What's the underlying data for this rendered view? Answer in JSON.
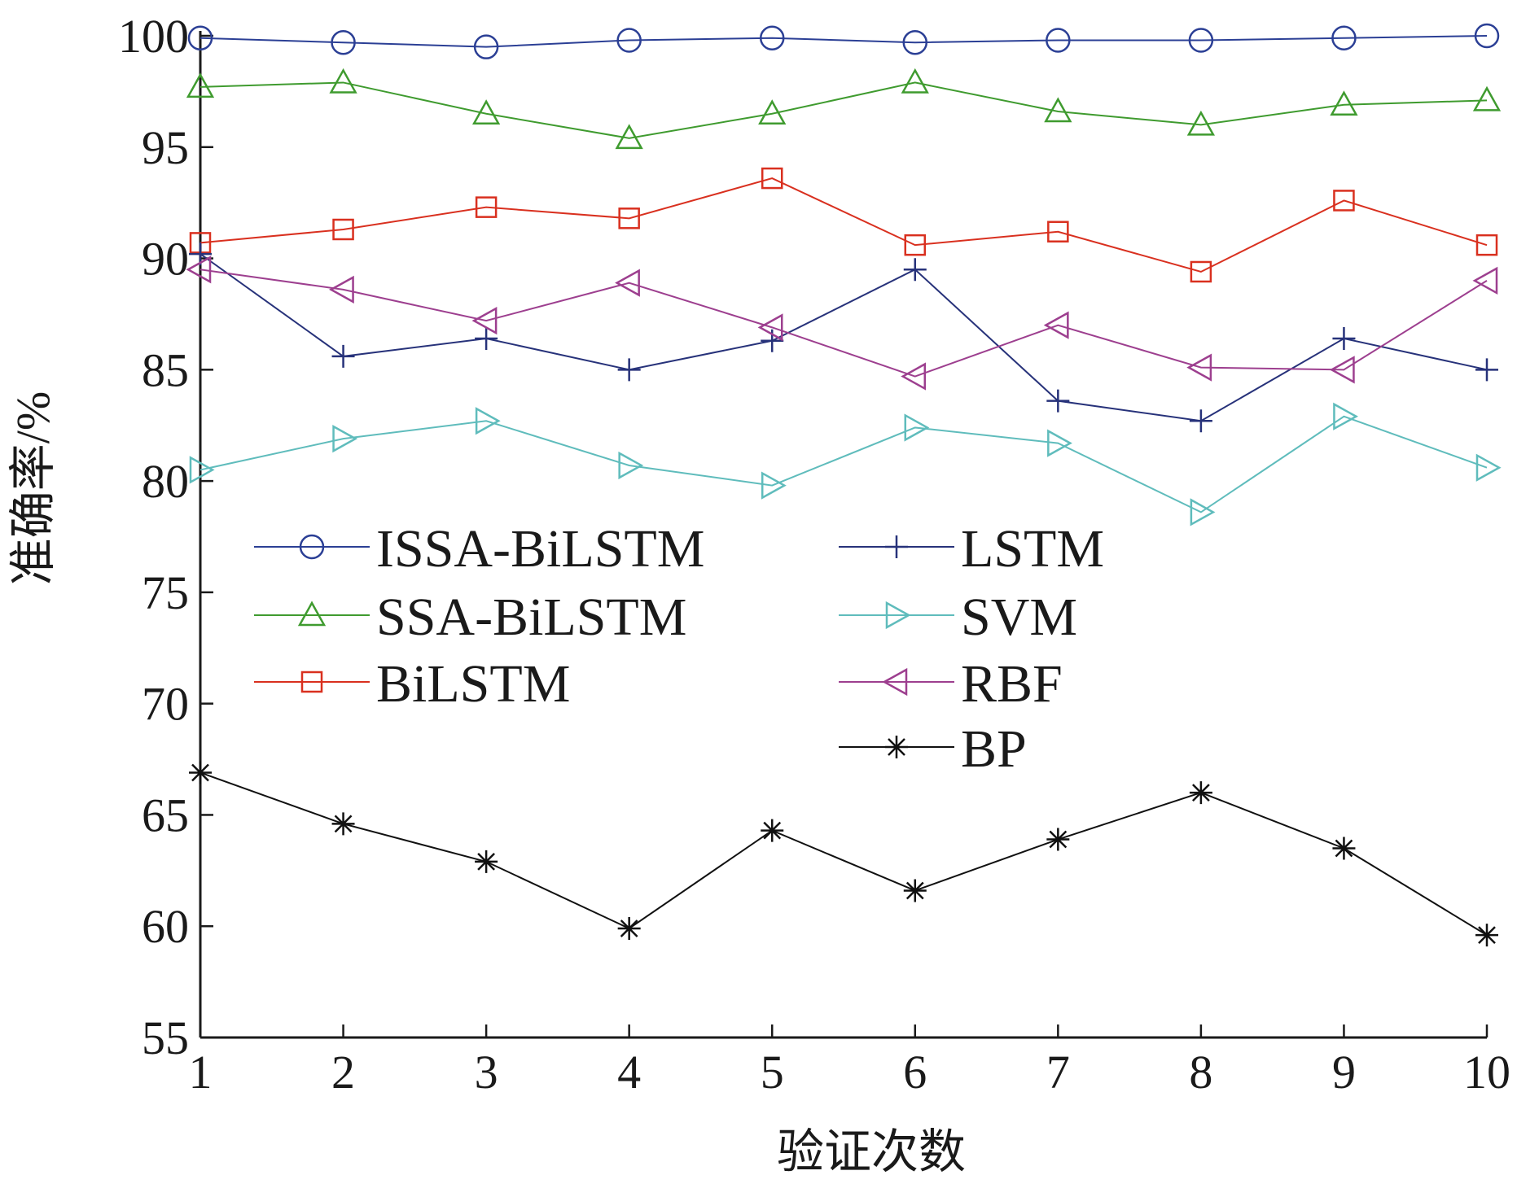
{
  "chart_data": {
    "type": "line",
    "xlabel": "验证次数",
    "ylabel": "准确率/%",
    "xlim": [
      1,
      10
    ],
    "ylim": [
      55,
      100
    ],
    "x": [
      1,
      2,
      3,
      4,
      5,
      6,
      7,
      8,
      9,
      10
    ],
    "x_ticks": [
      1,
      2,
      3,
      4,
      5,
      6,
      7,
      8,
      9,
      10
    ],
    "y_ticks": [
      55,
      60,
      65,
      70,
      75,
      80,
      85,
      90,
      95,
      100
    ],
    "grid": false,
    "legend_position": "center-left",
    "series": [
      {
        "name": "ISSA-BiLSTM",
        "color": "#2b3f95",
        "marker": "circle",
        "values": [
          99.9,
          99.7,
          99.5,
          99.8,
          99.9,
          99.7,
          99.8,
          99.8,
          99.9,
          100.0
        ]
      },
      {
        "name": "SSA-BiLSTM",
        "color": "#3f9b2f",
        "marker": "triangle-up",
        "values": [
          97.7,
          97.9,
          96.5,
          95.4,
          96.5,
          97.9,
          96.6,
          96.0,
          96.9,
          97.1
        ]
      },
      {
        "name": "BiLSTM",
        "color": "#d9301f",
        "marker": "square",
        "values": [
          90.7,
          91.3,
          92.3,
          91.8,
          93.6,
          90.6,
          91.2,
          89.4,
          92.6,
          90.6
        ]
      },
      {
        "name": "LSTM",
        "color": "#27327a",
        "marker": "plus",
        "values": [
          90.2,
          85.6,
          86.4,
          85.0,
          86.3,
          89.5,
          83.6,
          82.7,
          86.4,
          85.0
        ]
      },
      {
        "name": "SVM",
        "color": "#5fbcbc",
        "marker": "triangle-right",
        "values": [
          80.5,
          81.9,
          82.7,
          80.7,
          79.8,
          82.4,
          81.7,
          78.6,
          82.9,
          80.6
        ]
      },
      {
        "name": "RBF",
        "color": "#9d3f8f",
        "marker": "triangle-left",
        "values": [
          89.5,
          88.6,
          87.2,
          88.9,
          86.9,
          84.7,
          87.0,
          85.1,
          85.0,
          89.0
        ]
      },
      {
        "name": "BP",
        "color": "#111111",
        "marker": "asterisk",
        "values": [
          66.9,
          64.6,
          62.9,
          59.9,
          64.3,
          61.6,
          63.9,
          66.0,
          63.5,
          59.6
        ]
      }
    ]
  }
}
